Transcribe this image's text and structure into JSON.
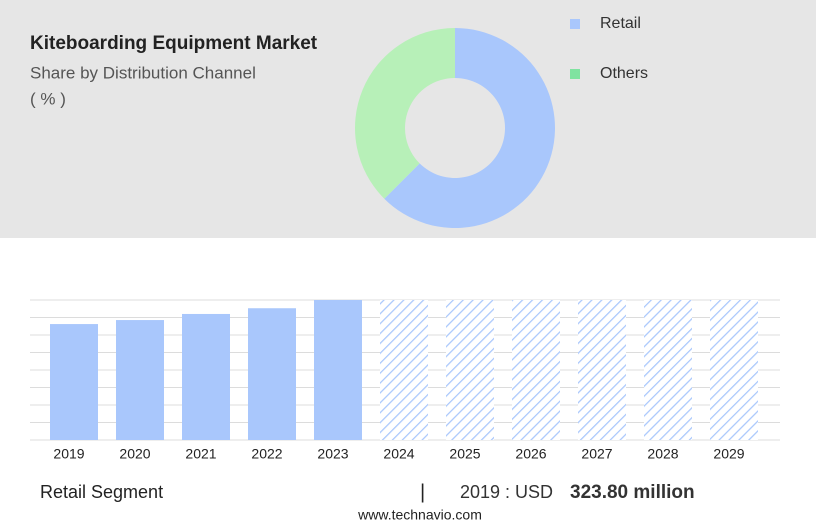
{
  "chart_data": [
    {
      "type": "pie",
      "title": "Kiteboarding Equipment Market",
      "subtitle": "Share by Distribution Channel",
      "unit_label": "( % )",
      "categories": [
        "Retail",
        "Others"
      ],
      "values": [
        62.5,
        37.5
      ],
      "colors": [
        "#a9c7fc",
        "#b7f0b8"
      ],
      "legend_colors": [
        "#a9c7fc",
        "#7fe3a0"
      ],
      "donut": true
    },
    {
      "type": "bar",
      "categories": [
        "2019",
        "2020",
        "2021",
        "2022",
        "2023",
        "2024",
        "2025",
        "2026",
        "2027",
        "2028",
        "2029"
      ],
      "values": [
        323.8,
        335,
        352,
        368,
        391,
        null,
        null,
        null,
        null,
        null,
        null
      ],
      "color": "#a9c7fc",
      "ylim": [
        0,
        391
      ],
      "grid": true
    }
  ],
  "footer": {
    "segment": "Retail Segment",
    "separator": "|",
    "year_label": "2019 : USD",
    "value_label": "323.80 million",
    "source": "www.technavio.com"
  }
}
